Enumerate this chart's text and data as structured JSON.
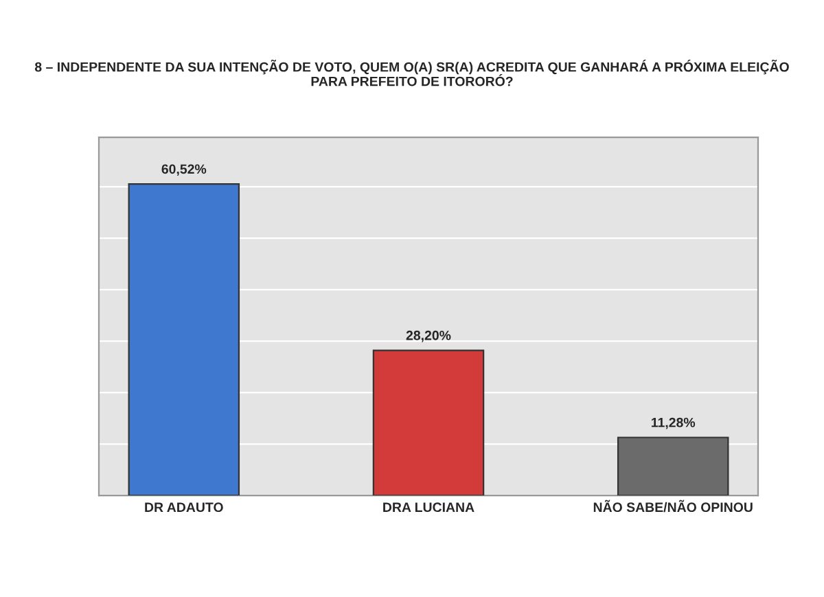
{
  "chart_data": {
    "type": "bar",
    "title": "8 – INDEPENDENTE DA SUA INTENÇÃO DE VOTO, QUEM O(A) SR(A) ACREDITA QUE GANHARÁ A PRÓXIMA ELEIÇÃO\nPARA PREFEITO DE ITORORÓ?",
    "categories": [
      "DR ADAUTO",
      "DRA LUCIANA",
      "NÃO SABE/NÃO OPINOU"
    ],
    "values": [
      60.52,
      28.2,
      11.28
    ],
    "colors": [
      "#3f78cf",
      "#d33a3a",
      "#6b6b6b"
    ],
    "value_labels": [
      "60,52%",
      "28,20%",
      "11,28%"
    ],
    "grid": "y",
    "tick_labels": "x"
  }
}
